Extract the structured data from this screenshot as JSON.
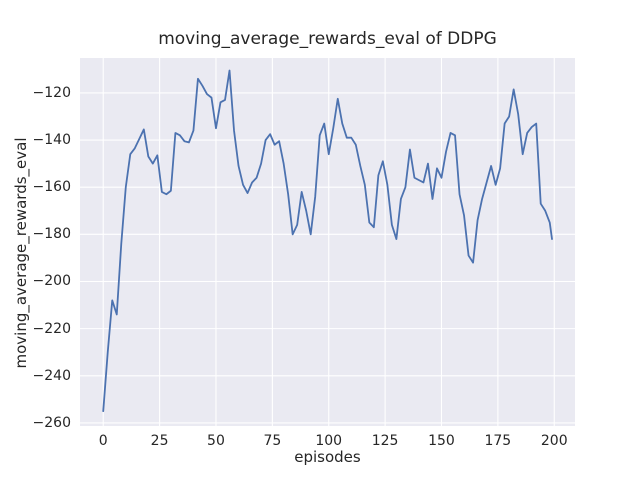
{
  "chart_data": {
    "type": "line",
    "title": "moving_average_rewards_eval of DDPG",
    "xlabel": "episodes",
    "ylabel": "moving_average_rewards_eval",
    "grid": true,
    "legend": false,
    "xlim": [
      -10.3,
      209.2
    ],
    "ylim": [
      -261.3,
      -105.2
    ],
    "xticks": [
      0,
      25,
      50,
      75,
      100,
      125,
      150,
      175,
      200
    ],
    "yticks": [
      -260,
      -240,
      -220,
      -200,
      -180,
      -160,
      -140,
      -120
    ],
    "colors": {
      "line": "#4c72b0",
      "plot_background": "#eaeaf2",
      "gridline": "#ffffff",
      "text": "#262626",
      "figure_background": "#ffffff"
    },
    "series": [
      {
        "name": "moving_average_rewards_eval",
        "x": [
          0,
          2,
          4,
          6,
          8,
          10,
          12,
          14,
          16,
          18,
          20,
          22,
          24,
          26,
          28,
          30,
          32,
          34,
          36,
          38,
          40,
          42,
          44,
          46,
          48,
          50,
          52,
          54,
          56,
          58,
          60,
          62,
          64,
          66,
          68,
          70,
          72,
          74,
          76,
          78,
          80,
          82,
          84,
          86,
          88,
          90,
          92,
          94,
          96,
          98,
          100,
          102,
          104,
          106,
          108,
          110,
          112,
          114,
          116,
          118,
          120,
          122,
          124,
          126,
          128,
          130,
          132,
          134,
          136,
          138,
          140,
          142,
          144,
          146,
          148,
          150,
          152,
          154,
          156,
          158,
          160,
          162,
          164,
          166,
          168,
          170,
          172,
          174,
          176,
          178,
          180,
          182,
          184,
          186,
          188,
          190,
          192,
          194,
          196,
          198,
          199
        ],
        "y": [
          -255,
          -230,
          -208,
          -214,
          -184,
          -160,
          -146,
          -143.5,
          -139.5,
          -135.5,
          -147,
          -150,
          -146.5,
          -162,
          -163,
          -161.5,
          -137,
          -138,
          -140.5,
          -141,
          -136,
          -114,
          -117,
          -120.5,
          -122,
          -135,
          -124,
          -123,
          -110.5,
          -136,
          -151,
          -159,
          -162.5,
          -158,
          -156,
          -150,
          -140,
          -137.5,
          -142,
          -140.5,
          -150,
          -163,
          -180,
          -176,
          -162,
          -170,
          -180,
          -164,
          -138,
          -133,
          -146,
          -135,
          -122.5,
          -133,
          -139,
          -139,
          -142,
          -151,
          -159,
          -175,
          -177,
          -155,
          -149,
          -159,
          -176,
          -182,
          -165,
          -160,
          -144,
          -156,
          -157,
          -158,
          -150,
          -165,
          -152,
          -156,
          -145,
          -137,
          -138,
          -163,
          -172,
          -189,
          -192,
          -174,
          -165,
          -158,
          -151,
          -159,
          -152,
          -133,
          -130,
          -118.5,
          -129,
          -146,
          -137,
          -134.5,
          -133,
          -167,
          -170,
          -175,
          -182
        ]
      }
    ]
  }
}
